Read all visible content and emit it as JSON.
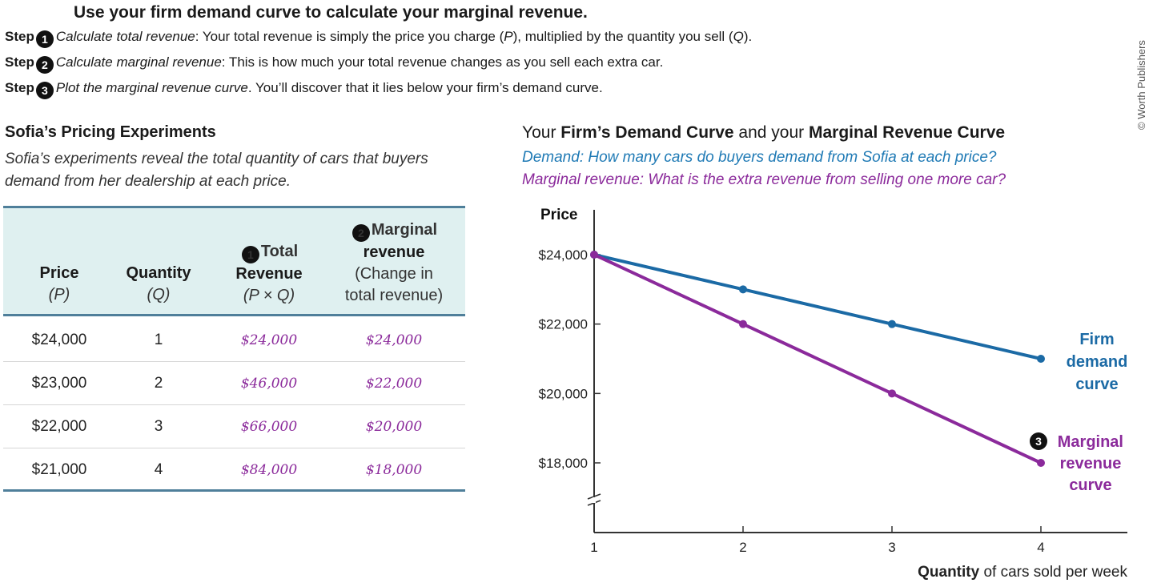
{
  "headline": "Use your firm demand curve to calculate your marginal revenue.",
  "steps": [
    {
      "label": "Step",
      "num": "1",
      "italic": "Calculate total revenue",
      "text": ": Your total revenue is simply the price you charge (",
      "p": "P",
      "mid": "), multiplied by the quantity you sell (",
      "q": "Q",
      "end": ")."
    },
    {
      "label": "Step",
      "num": "2",
      "italic": "Calculate marginal revenue",
      "text": ": This is how much your total revenue changes as you sell each extra car."
    },
    {
      "label": "Step",
      "num": "3",
      "italic": "Plot the marginal revenue curve",
      "text": ". You’ll discover that it lies below your firm’s demand curve."
    }
  ],
  "copyright": "© Worth Publishers",
  "table": {
    "title": "Sofia’s Pricing Experiments",
    "subtitle": "Sofia’s experiments reveal the total quantity of cars that buyers demand from her dealership at each price.",
    "headers": {
      "price": {
        "main": "Price",
        "sub": "(P)"
      },
      "quantity": {
        "main": "Quantity",
        "sub": "(Q)"
      },
      "total": {
        "num": "1",
        "main1": "Total",
        "main2": "Revenue",
        "sub": "(P × Q)"
      },
      "marginal": {
        "num": "2",
        "main1": "Marginal",
        "main2": "revenue",
        "sub1": "(Change in",
        "sub2": "total revenue)"
      }
    },
    "rows": [
      {
        "price": "$24,000",
        "quantity": "1",
        "total": "$24,000",
        "marginal": "$24,000"
      },
      {
        "price": "$23,000",
        "quantity": "2",
        "total": "$46,000",
        "marginal": "$22,000"
      },
      {
        "price": "$22,000",
        "quantity": "3",
        "total": "$66,000",
        "marginal": "$20,000"
      },
      {
        "price": "$21,000",
        "quantity": "4",
        "total": "$84,000",
        "marginal": "$18,000"
      }
    ]
  },
  "chart_title": {
    "p1": "Your ",
    "b1": "Firm’s Demand Curve",
    "p2": " and your ",
    "b2": "Marginal Revenue Curve"
  },
  "chart_subtitle_demand": "Demand: How many cars do buyers demand from Sofia at each price?",
  "chart_subtitle_mr": "Marginal revenue: What is the extra revenue from selling one more car?",
  "colors": {
    "demand": "#1b6aa5",
    "marginal": "#8b2a9b",
    "rule": "#4f7f9a",
    "header_bg": "#dff0f0"
  },
  "chart_data": {
    "type": "line",
    "ylabel": "Price",
    "xlabel_bold": "Quantity",
    "xlabel_rest": " of cars sold per week",
    "x": [
      1,
      2,
      3,
      4
    ],
    "x_ticks": [
      "1",
      "2",
      "3",
      "4"
    ],
    "y_ticks": [
      "$24,000",
      "$22,000",
      "$20,000",
      "$18,000"
    ],
    "y_tick_values": [
      24000,
      22000,
      20000,
      18000
    ],
    "xlim": [
      1,
      4.2
    ],
    "ylim": [
      16000,
      25000
    ],
    "axis_break": true,
    "series": [
      {
        "name": "Firm demand curve",
        "label_lines": [
          "Firm",
          "demand",
          "curve"
        ],
        "values": [
          24000,
          23000,
          22000,
          21000
        ]
      },
      {
        "name": "Marginal revenue curve",
        "label_num": "3",
        "label_lines": [
          "Marginal",
          "revenue",
          "curve"
        ],
        "values": [
          24000,
          22000,
          20000,
          18000
        ]
      }
    ]
  }
}
